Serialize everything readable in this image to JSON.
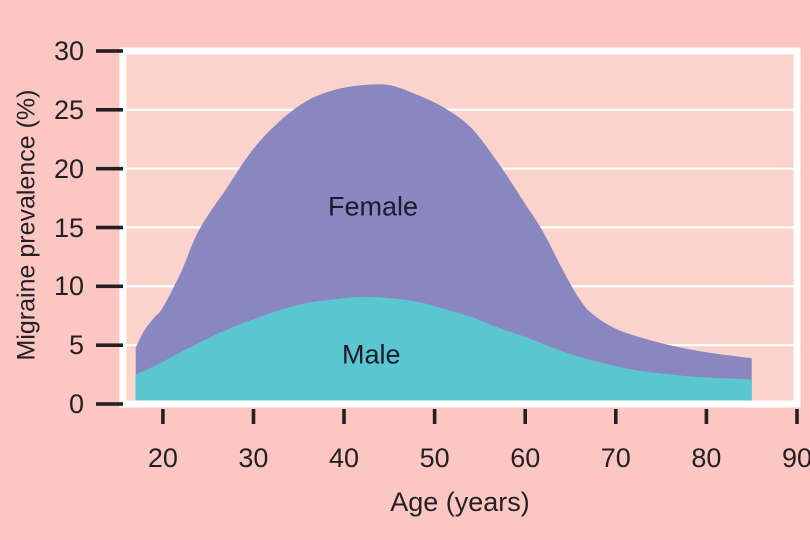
{
  "figure": {
    "colors": {
      "background": "#fcc7c2",
      "plot_background": "#fbd3cd",
      "grid": "#ffffff",
      "border": "#ffffff",
      "tick": "#241f23",
      "text": "#241f23"
    }
  },
  "chart_data": {
    "type": "area",
    "title": "",
    "xlabel": "Age (years)",
    "ylabel": "Migraine prevalence (%)",
    "xlim": [
      15.6,
      90
    ],
    "ylim": [
      0,
      30
    ],
    "x_ticks": [
      20,
      30,
      40,
      50,
      60,
      70,
      80,
      90
    ],
    "y_ticks": [
      0,
      5,
      10,
      15,
      20,
      25,
      30
    ],
    "grid": "horizontal-white-lines",
    "legend": "inline-labels",
    "series": [
      {
        "name": "Female",
        "color": "#8a86c0",
        "label_pos": {
          "age": 43.2,
          "value": 16.7
        },
        "points": [
          [
            17,
            4.8
          ],
          [
            18,
            6.3
          ],
          [
            19,
            7.3
          ],
          [
            20,
            8.2
          ],
          [
            22,
            11.2
          ],
          [
            24,
            14.8
          ],
          [
            27,
            18.3
          ],
          [
            30,
            21.7
          ],
          [
            33,
            24.1
          ],
          [
            36,
            25.8
          ],
          [
            39,
            26.7
          ],
          [
            42,
            27.1
          ],
          [
            45,
            27.1
          ],
          [
            48,
            26.3
          ],
          [
            51,
            25.2
          ],
          [
            54,
            23.5
          ],
          [
            57,
            20.5
          ],
          [
            60,
            17.0
          ],
          [
            62,
            14.6
          ],
          [
            64,
            11.6
          ],
          [
            66,
            8.9
          ],
          [
            67.5,
            7.6
          ],
          [
            70,
            6.4
          ],
          [
            73,
            5.6
          ],
          [
            76,
            5.0
          ],
          [
            80,
            4.4
          ],
          [
            85,
            3.9
          ]
        ]
      },
      {
        "name": "Male",
        "color": "#5ac6d0",
        "label_pos": {
          "age": 43.0,
          "value": 4.2
        },
        "points": [
          [
            17,
            2.5
          ],
          [
            19,
            3.2
          ],
          [
            21,
            4.0
          ],
          [
            24,
            5.2
          ],
          [
            27,
            6.3
          ],
          [
            30,
            7.2
          ],
          [
            33,
            8.0
          ],
          [
            36,
            8.6
          ],
          [
            39,
            8.9
          ],
          [
            42,
            9.1
          ],
          [
            45,
            9.0
          ],
          [
            48,
            8.7
          ],
          [
            51,
            8.1
          ],
          [
            54,
            7.4
          ],
          [
            57,
            6.5
          ],
          [
            60,
            5.7
          ],
          [
            63,
            4.8
          ],
          [
            66,
            4.0
          ],
          [
            69,
            3.4
          ],
          [
            72,
            2.9
          ],
          [
            75,
            2.6
          ],
          [
            79,
            2.3
          ],
          [
            85,
            2.1
          ]
        ]
      }
    ]
  }
}
